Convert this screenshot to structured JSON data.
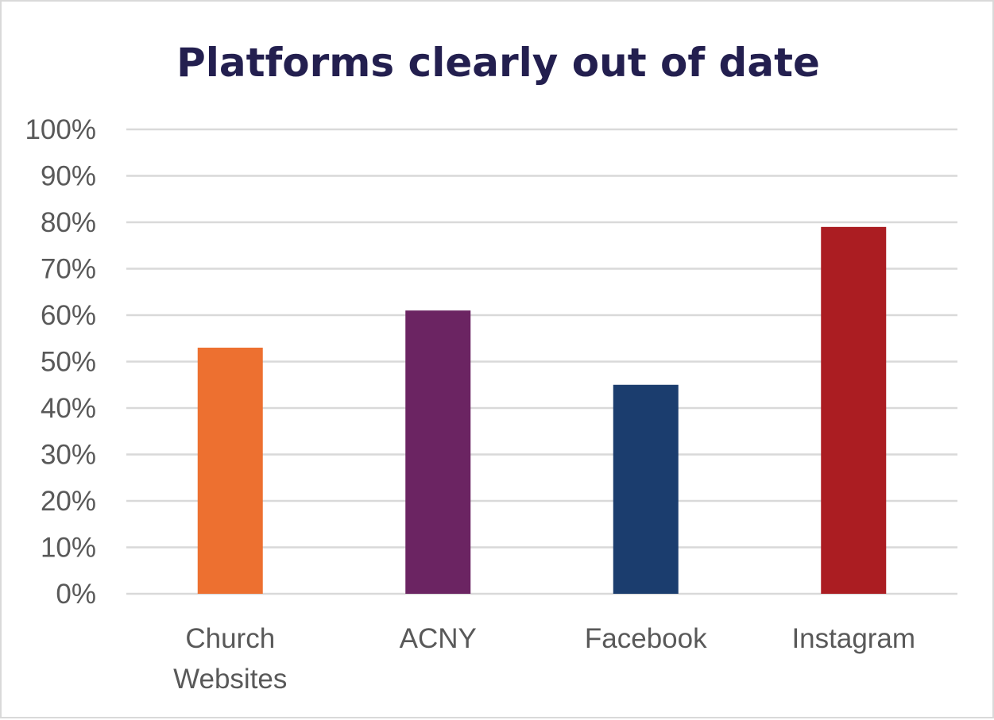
{
  "chart_data": {
    "type": "bar",
    "title": "Platforms clearly out of date",
    "categories": [
      "Church Websites",
      "ACNY",
      "Facebook",
      "Instagram"
    ],
    "category_lines": [
      [
        "Church",
        "Websites"
      ],
      [
        "ACNY"
      ],
      [
        "Facebook"
      ],
      [
        "Instagram"
      ]
    ],
    "values": [
      0.53,
      0.61,
      0.45,
      0.79
    ],
    "bar_colors": [
      "#ed7030",
      "#6b2462",
      "#1b3d6e",
      "#ab1d22"
    ],
    "ylim": [
      0,
      1
    ],
    "yticks": [
      0,
      0.1,
      0.2,
      0.3,
      0.4,
      0.5,
      0.6,
      0.7,
      0.8,
      0.9,
      1.0
    ],
    "ytick_labels": [
      "0%",
      "10%",
      "20%",
      "30%",
      "40%",
      "50%",
      "60%",
      "70%",
      "80%",
      "90%",
      "100%"
    ],
    "grid": true,
    "xlabel": "",
    "ylabel": "",
    "colors": {
      "title": "#231f4f",
      "grid": "#d9d9d9",
      "tick_text": "#595959"
    }
  }
}
